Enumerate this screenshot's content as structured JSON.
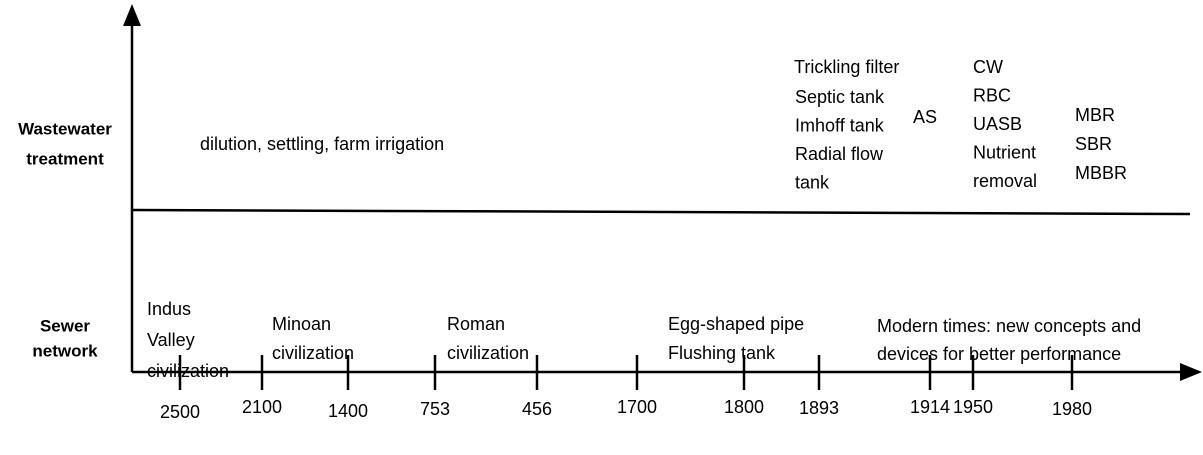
{
  "rows": [
    {
      "label": [
        "Wastewater",
        "treatment"
      ]
    },
    {
      "label": [
        "Sewer",
        "network"
      ]
    }
  ],
  "treatment": [
    [
      "dilution, settling, farm irrigation"
    ],
    [
      "Trickling filter"
    ],
    [
      "Septic tank",
      "Imhoff tank",
      "Radial flow",
      "tank"
    ],
    [
      "AS"
    ],
    [
      "CW",
      "RBC",
      "UASB",
      "Nutrient",
      "removal"
    ],
    [
      "MBR",
      "SBR",
      "MBBR"
    ]
  ],
  "sewer": [
    [
      "Indus",
      "Valley",
      "civilization"
    ],
    [
      "Minoan",
      "civilization"
    ],
    [
      "Roman",
      "civilization"
    ],
    [
      "Egg-shaped pipe",
      "Flushing tank"
    ],
    [
      "Modern times: new concepts and",
      "devices for better performance"
    ]
  ],
  "ticks": [
    "2500",
    "2100",
    "1400",
    "753",
    "456",
    "1700",
    "1800",
    "1893",
    "1914",
    "1950",
    "1980"
  ]
}
